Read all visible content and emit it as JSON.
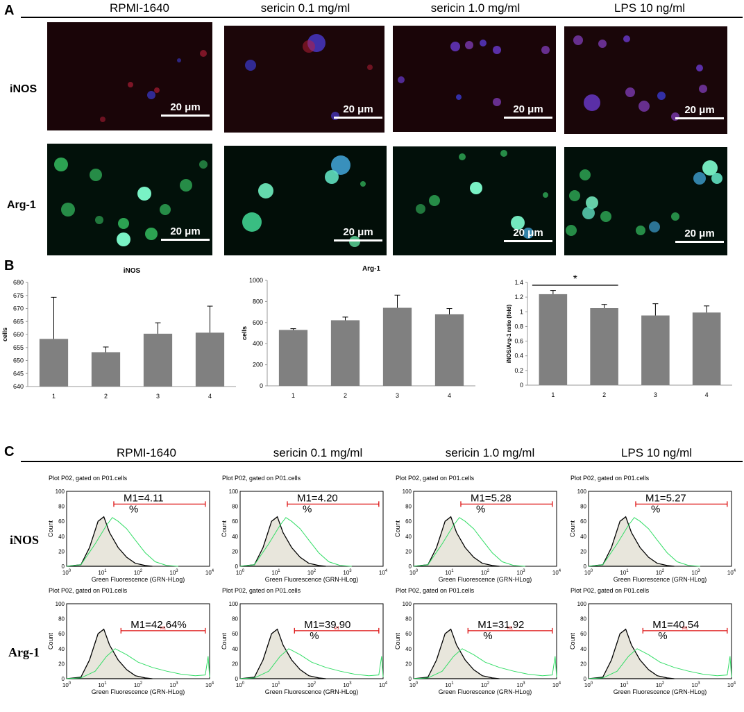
{
  "panel_a": {
    "letter": "A",
    "columns": [
      "RPMI-1640",
      "sericin 0.1 mg/ml",
      "sericin 1.0 mg/ml",
      "LPS 10 ng/ml"
    ],
    "rows": [
      "iNOS",
      "Arg-1"
    ],
    "scale_label": "20 μm",
    "colors": {
      "inos_bg": "#1a0508",
      "arg_bg": "#02110a",
      "red": "#c0203a",
      "blue": "#3a3ad0",
      "green": "#3fe070",
      "cyan": "#80ffd0"
    }
  },
  "panel_b": {
    "letter": "B",
    "bar_color": "#808080"
  },
  "chart_data": [
    {
      "type": "bar",
      "title": "iNOS",
      "ylabel": "cells",
      "categories": [
        "1",
        "2",
        "3",
        "4"
      ],
      "values": [
        658.3,
        653.2,
        660.3,
        660.7
      ],
      "errors": [
        16.0,
        2.0,
        4.2,
        10.2
      ],
      "ylim": [
        640,
        680
      ],
      "yticks": [
        640,
        645,
        650,
        655,
        660,
        665,
        670,
        675,
        680
      ]
    },
    {
      "type": "bar",
      "title": "Arg-1",
      "ylabel": "cells",
      "categories": [
        "1",
        "2",
        "3",
        "4"
      ],
      "values": [
        530,
        622,
        740,
        678
      ],
      "errors": [
        12,
        30,
        120,
        55
      ],
      "ylim": [
        0,
        1000
      ],
      "yticks": [
        0,
        200,
        400,
        600,
        800,
        1000
      ]
    },
    {
      "type": "bar",
      "title": "",
      "ylabel": "iNOS/Arg-1 ratio (fold)",
      "categories": [
        "1",
        "2",
        "3",
        "4"
      ],
      "values": [
        1.24,
        1.05,
        0.95,
        0.99
      ],
      "errors": [
        0.05,
        0.05,
        0.16,
        0.09
      ],
      "ylim": [
        0,
        1.4
      ],
      "yticks": [
        0,
        0.2,
        0.4,
        0.6,
        0.8,
        1,
        1.2,
        1.4
      ],
      "annotation": {
        "text": "*",
        "from": "1",
        "to": "2"
      }
    }
  ],
  "panel_c": {
    "letter": "C",
    "columns": [
      "RPMI-1640",
      "sericin 0.1 mg/ml",
      "sericin 1.0 mg/ml",
      "LPS 10 ng/ml"
    ],
    "rows": [
      "iNOS",
      "Arg-1"
    ],
    "plot_caption": "Plot P02, gated on P01.cells",
    "x_axis_label": "Green Fluorescence (GRN-HLog)",
    "y_axis_label": "Count",
    "y_ticks": [
      "0",
      "20",
      "40",
      "60",
      "80",
      "100"
    ],
    "m1_values": [
      [
        "M1=4.11 %",
        "M1=4.20 %",
        "M1=5.28 %",
        "M1=5.27 %"
      ],
      [
        "M1=42.64%",
        "M1=39.90 %",
        "M1=31.92 %",
        "M1=40.54 %"
      ]
    ],
    "gate_label": "M1",
    "colors": {
      "control": "#000000",
      "fill": "#e8e6dc",
      "sample": "#33dd66",
      "gate": "#dd1111"
    }
  }
}
